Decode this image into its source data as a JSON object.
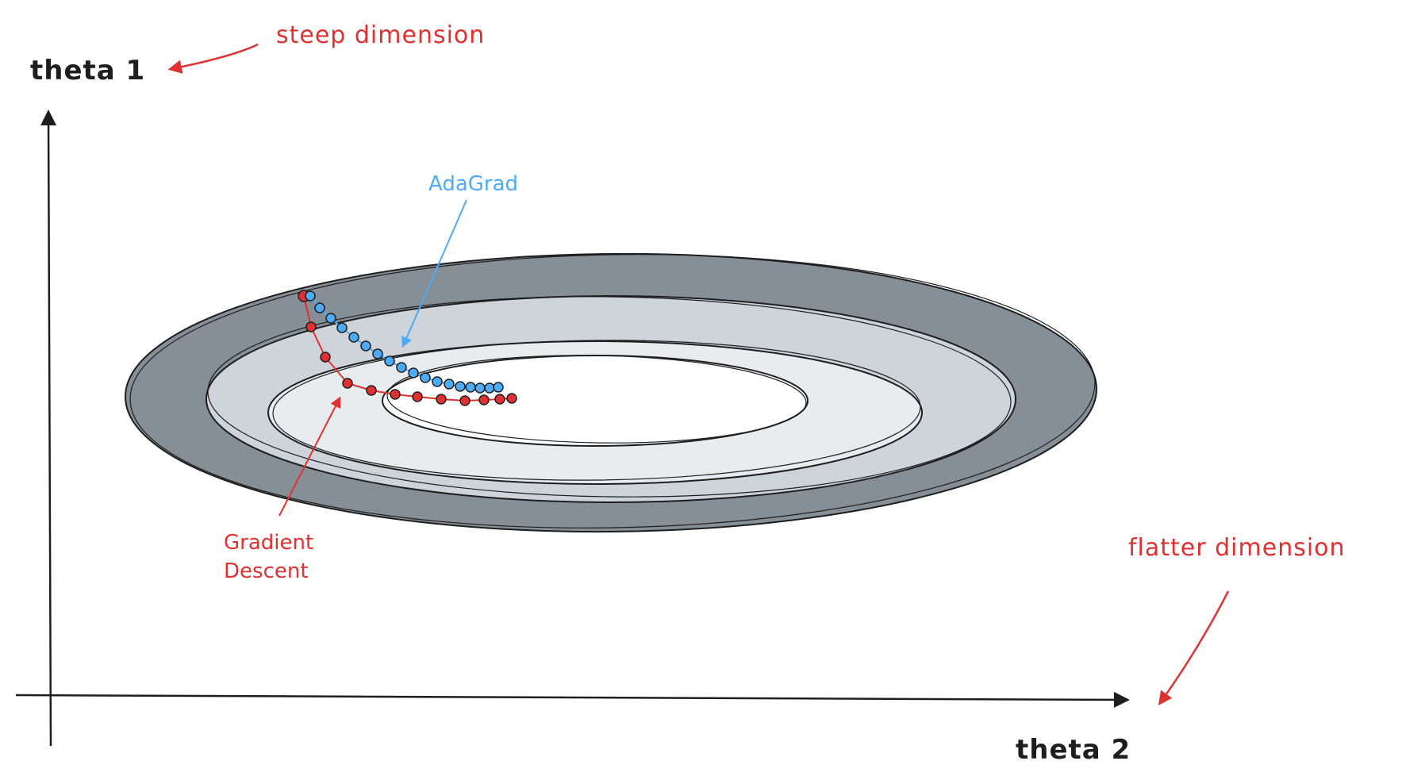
{
  "axes": {
    "y_label": "theta 1",
    "x_label": "theta 2"
  },
  "annotations": {
    "steep": "steep dimension",
    "flatter": "flatter dimension",
    "adagrad": "AdaGrad",
    "gd_line1": "Gradient",
    "gd_line2": "Descent"
  },
  "colors": {
    "outer_ring": "#868e96",
    "middle_ring": "#ced4da",
    "inner_ring": "#e9ecef",
    "center": "#ffffff",
    "stroke": "#1e1e1e",
    "red": "#e03131",
    "blue": "#4dabf7"
  },
  "paths": {
    "adagrad_points": 20,
    "gradient_descent_points": 12
  }
}
